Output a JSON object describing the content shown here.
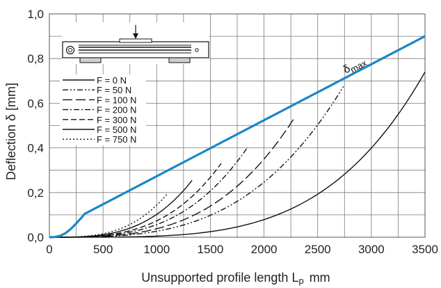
{
  "chart_data": {
    "type": "line",
    "xlabel": "Unsupported profile length L",
    "xlabel_sub": "p",
    "xlabel_unit": "mm",
    "ylabel": "Deflection δ [mm]",
    "xlim": [
      0,
      3500
    ],
    "ylim": [
      0,
      1.0
    ],
    "x_ticks": [
      0,
      500,
      1000,
      1500,
      2000,
      2500,
      3000,
      3500
    ],
    "x_tick_labels": [
      "0",
      "500",
      "1000",
      "1500",
      "2000",
      "2500",
      "3000",
      "3500"
    ],
    "y_ticks": [
      0,
      0.2,
      0.4,
      0.6,
      0.8,
      1.0
    ],
    "y_tick_labels": [
      "0,0",
      "0,2",
      "0,4",
      "0,6",
      "0,8",
      "1,0"
    ],
    "x_grid": [
      0,
      250,
      500,
      750,
      1000,
      1250,
      1500,
      1750,
      2000,
      2250,
      2500,
      2750,
      3000,
      3250,
      3500
    ],
    "y_grid": [
      0,
      0.1,
      0.2,
      0.3,
      0.4,
      0.5,
      0.6,
      0.7,
      0.8,
      0.9,
      1.0
    ],
    "grid": true,
    "legend_position": "top-left",
    "max_color": "#1a86c7",
    "max_series": {
      "name": "δ",
      "name_sub": "max",
      "x": [
        0,
        50,
        100,
        150,
        200,
        250,
        300,
        330,
        3500
      ],
      "y": [
        0,
        0.001,
        0.006,
        0.018,
        0.037,
        0.062,
        0.088,
        0.105,
        0.9
      ]
    },
    "series": [
      {
        "name": "F = 0 N",
        "dash": "",
        "x_end": 3500,
        "y_end": 0.74,
        "exponent": 4
      },
      {
        "name": "F = 50 N",
        "dash": "8 3 2 3 2 3",
        "x_end": 2740,
        "y_end": 0.675,
        "exponent": 3.2
      },
      {
        "name": "F = 100 N",
        "dash": "14 5",
        "x_end": 2290,
        "y_end": 0.54,
        "exponent": 3.2
      },
      {
        "name": "F = 200 N",
        "dash": "8 3 2 3",
        "x_end": 1850,
        "y_end": 0.405,
        "exponent": 3.2
      },
      {
        "name": "F = 300 N",
        "dash": "8 4",
        "x_end": 1600,
        "y_end": 0.33,
        "exponent": 3.2
      },
      {
        "name": "F = 500 N",
        "dash": "",
        "x_end": 1330,
        "y_end": 0.255,
        "exponent": 3.2
      },
      {
        "name": "F = 750 N",
        "dash": "2 3",
        "x_end": 1100,
        "y_end": 0.195,
        "exponent": 3.2
      }
    ]
  }
}
